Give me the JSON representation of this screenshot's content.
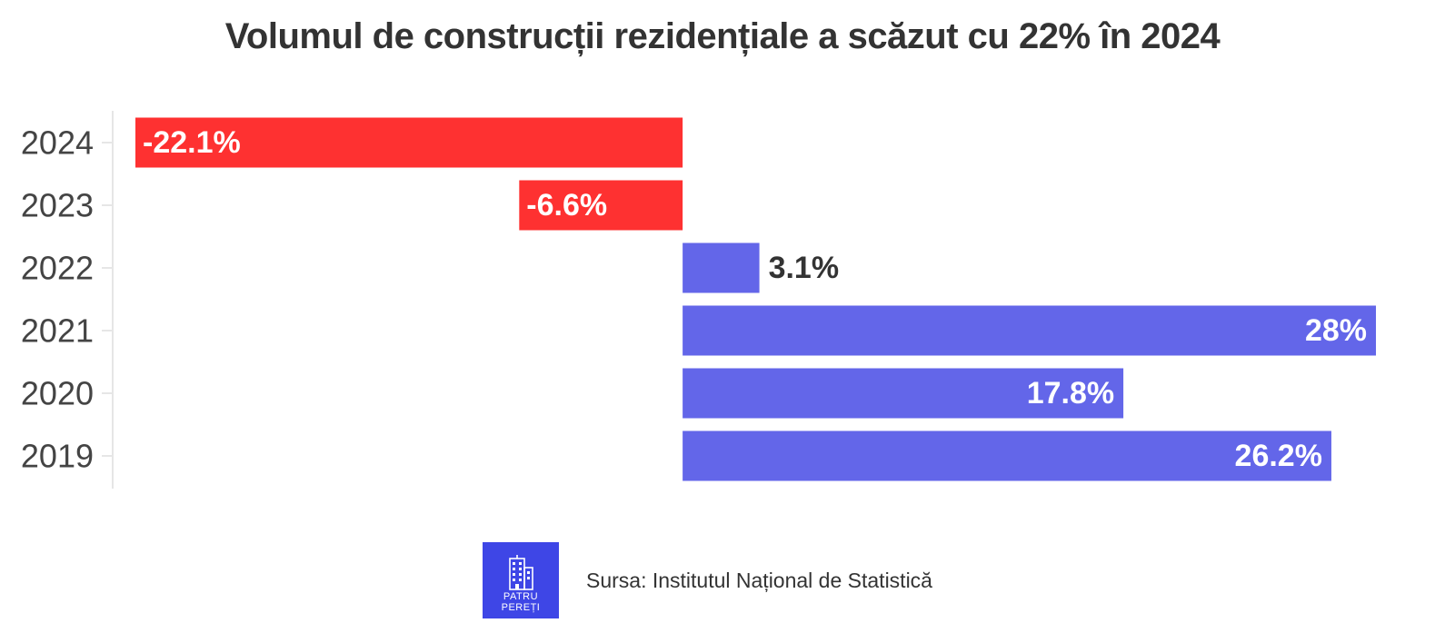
{
  "chart_data": {
    "type": "bar",
    "orientation": "horizontal",
    "title": "Volumul de construcții rezidențiale a scăzut cu 22% în 2024",
    "categories": [
      "2024",
      "2023",
      "2022",
      "2021",
      "2020",
      "2019"
    ],
    "values": [
      -22.1,
      -6.6,
      3.1,
      28,
      17.8,
      26.2
    ],
    "value_labels": [
      "-22.1%",
      "-6.6%",
      "3.1%",
      "28%",
      "17.8%",
      "26.2%"
    ],
    "xlim": [
      -22.1,
      28
    ],
    "xlabel": "",
    "ylabel": "",
    "grid": false,
    "legend": "none",
    "colors": {
      "negative": "#fe3131",
      "positive": "#6366e9",
      "label_inside": "#ffffff",
      "label_outside": "#333333",
      "axis": "#e6e6e6"
    }
  },
  "footer": {
    "logo_text": "PATRU PEREȚI",
    "logo_icon": "building-icon",
    "logo_color": "#3e46e6",
    "source": "Sursa: Institutul Național de Statistică"
  }
}
